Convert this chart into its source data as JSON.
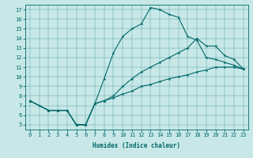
{
  "bg_color": "#c8e8e8",
  "line_color": "#006868",
  "xlabel": "Humidex (Indice chaleur)",
  "xlim": [
    -0.5,
    23.5
  ],
  "ylim": [
    4.5,
    17.5
  ],
  "xticks": [
    0,
    1,
    2,
    3,
    4,
    5,
    6,
    7,
    8,
    9,
    10,
    11,
    12,
    13,
    14,
    15,
    16,
    17,
    18,
    19,
    20,
    21,
    22,
    23
  ],
  "yticks": [
    5,
    6,
    7,
    8,
    9,
    10,
    11,
    12,
    13,
    14,
    15,
    16,
    17
  ],
  "lines": [
    {
      "x": [
        0,
        1,
        2,
        3,
        4,
        5,
        6,
        7,
        8,
        9,
        10,
        11,
        12,
        13,
        14,
        15,
        16,
        17,
        18,
        19,
        20,
        21,
        22,
        23
      ],
      "y": [
        7.5,
        7.0,
        6.5,
        6.5,
        6.5,
        5.0,
        5.0,
        7.2,
        9.8,
        12.5,
        14.2,
        15.0,
        15.5,
        17.2,
        17.0,
        16.5,
        16.2,
        14.2,
        13.8,
        12.0,
        11.8,
        11.5,
        11.2,
        10.8
      ]
    },
    {
      "x": [
        0,
        2,
        3,
        4,
        5,
        6,
        7,
        8,
        9,
        10,
        11,
        12,
        13,
        14,
        15,
        16,
        17,
        18,
        19,
        20,
        21,
        22,
        23
      ],
      "y": [
        7.5,
        6.5,
        6.5,
        6.5,
        5.0,
        5.0,
        7.2,
        7.5,
        8.0,
        9.0,
        9.8,
        10.5,
        11.0,
        11.5,
        12.0,
        12.5,
        13.0,
        14.0,
        13.2,
        13.2,
        12.2,
        11.8,
        10.8
      ]
    },
    {
      "x": [
        0,
        2,
        3,
        4,
        5,
        6,
        7,
        8,
        9,
        10,
        11,
        12,
        13,
        14,
        15,
        16,
        17,
        18,
        19,
        20,
        21,
        22,
        23
      ],
      "y": [
        7.5,
        6.5,
        6.5,
        6.5,
        5.0,
        5.0,
        7.2,
        7.5,
        7.8,
        8.2,
        8.5,
        9.0,
        9.2,
        9.5,
        9.8,
        10.0,
        10.2,
        10.5,
        10.7,
        11.0,
        11.0,
        11.0,
        10.8
      ]
    }
  ]
}
